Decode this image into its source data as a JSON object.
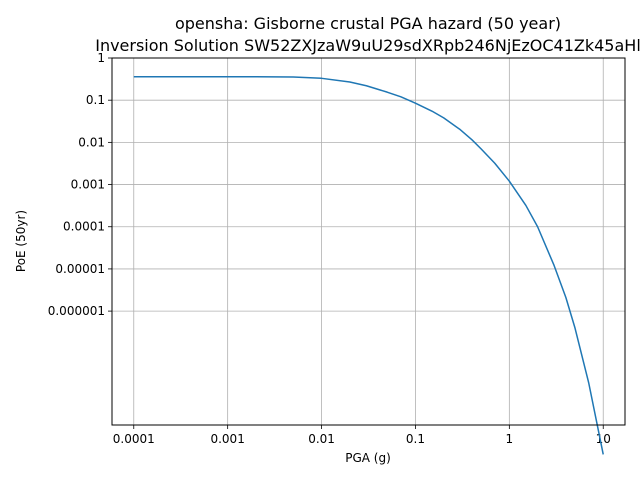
{
  "chart_data": {
    "type": "line",
    "title": "opensha: Gisborne crustal PGA hazard (50 year)",
    "subtitle": "Inversion Solution SW52ZXJzaW9uU29sdXRpb246NjEzOC41Zk45aHl",
    "xlabel": "PGA (g)",
    "ylabel": "PoE (50yr)",
    "xscale": "log",
    "yscale": "log",
    "grid": true,
    "xlim": [
      0.0001,
      10
    ],
    "ylim": [
      1e-09,
      1
    ],
    "x_ticks": [
      "0.0001",
      "0.001",
      "0.01",
      "0.1",
      "1",
      "10"
    ],
    "y_ticks": [
      "1",
      "0.1",
      "0.01",
      "0.001",
      "0.0001",
      "0.00001",
      "0.000001"
    ],
    "series": [
      {
        "color": "#1f77b4",
        "x": [
          0.0001,
          0.0002,
          0.0005,
          0.001,
          0.002,
          0.005,
          0.01,
          0.02,
          0.03,
          0.05,
          0.07,
          0.1,
          0.15,
          0.2,
          0.3,
          0.4,
          0.5,
          0.7,
          1.0,
          1.5,
          2.0,
          3.0,
          4.0,
          5.0,
          7.0,
          10.0
        ],
        "y": [
          0.36,
          0.36,
          0.36,
          0.36,
          0.36,
          0.355,
          0.33,
          0.27,
          0.22,
          0.155,
          0.12,
          0.085,
          0.055,
          0.038,
          0.02,
          0.0115,
          0.007,
          0.0032,
          0.0012,
          0.00032,
          0.0001,
          1.2e-05,
          2.1e-06,
          4e-07,
          2e-08,
          4e-10
        ]
      }
    ]
  }
}
